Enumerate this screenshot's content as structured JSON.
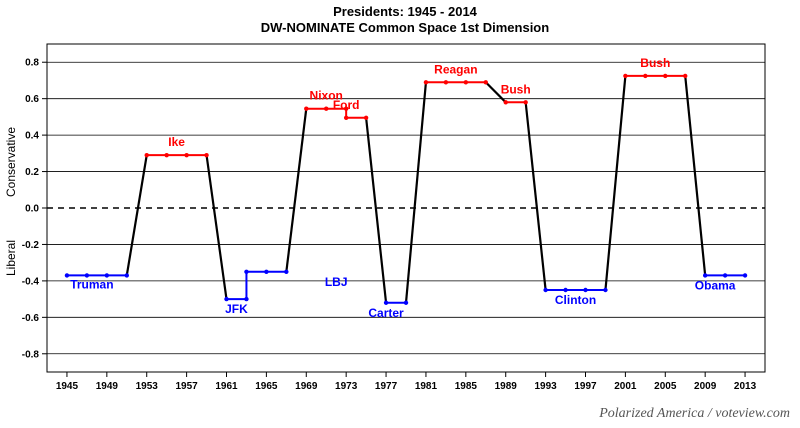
{
  "chart_data": {
    "type": "line",
    "title": "Presidents: 1945 - 2014",
    "subtitle": "DW-NOMINATE Common Space 1st Dimension",
    "xlabel": "",
    "ylabel_top": "Conservative",
    "ylabel_bottom": "Liberal",
    "xlim": [
      1943,
      2015
    ],
    "ylim": [
      -0.9,
      0.9
    ],
    "xticks": [
      1945,
      1949,
      1953,
      1957,
      1961,
      1965,
      1969,
      1973,
      1977,
      1981,
      1985,
      1989,
      1993,
      1997,
      2001,
      2005,
      2009,
      2013
    ],
    "yticks": [
      -0.8,
      -0.6,
      -0.4,
      -0.2,
      0.0,
      0.2,
      0.4,
      0.6,
      0.8
    ],
    "ytick_labels": [
      "-0.8",
      "-0.6",
      "-0.4",
      "-0.2",
      "0.0",
      "0.2",
      "0.4",
      "0.6",
      "0.8"
    ],
    "gridlines": true,
    "reference_line": 0.0,
    "colors": {
      "democrat": "#0000ff",
      "republican": "#ff0000",
      "transition": "#000000",
      "democrat_label": "#0000ff",
      "republican_label": "#ff0000"
    },
    "series": [
      {
        "name": "Truman",
        "party": "D",
        "x": [
          1945,
          1947,
          1949,
          1951
        ],
        "y": [
          -0.37,
          -0.37,
          -0.37,
          -0.37
        ]
      },
      {
        "name": "Ike",
        "party": "R",
        "x": [
          1953,
          1955,
          1957,
          1959
        ],
        "y": [
          0.29,
          0.29,
          0.29,
          0.29
        ]
      },
      {
        "name": "JFK",
        "party": "D",
        "x": [
          1961,
          1963
        ],
        "y": [
          -0.5,
          -0.5
        ]
      },
      {
        "name": "LBJ",
        "party": "D",
        "x": [
          1963,
          1965,
          1967
        ],
        "y": [
          -0.35,
          -0.35,
          -0.35
        ]
      },
      {
        "name": "Nixon",
        "party": "R",
        "x": [
          1969,
          1971,
          1973
        ],
        "y": [
          0.545,
          0.545,
          0.545
        ]
      },
      {
        "name": "Ford",
        "party": "R",
        "x": [
          1973,
          1975
        ],
        "y": [
          0.495,
          0.495
        ]
      },
      {
        "name": "Carter",
        "party": "D",
        "x": [
          1977,
          1979
        ],
        "y": [
          -0.52,
          -0.52
        ]
      },
      {
        "name": "Reagan",
        "party": "R",
        "x": [
          1981,
          1983,
          1985,
          1987
        ],
        "y": [
          0.69,
          0.69,
          0.69,
          0.69
        ]
      },
      {
        "name": "Bush",
        "party": "R",
        "x": [
          1989,
          1991
        ],
        "y": [
          0.58,
          0.58
        ]
      },
      {
        "name": "Clinton",
        "party": "D",
        "x": [
          1993,
          1995,
          1997,
          1999
        ],
        "y": [
          -0.45,
          -0.45,
          -0.45,
          -0.45
        ]
      },
      {
        "name": "Bush",
        "party": "R",
        "x": [
          2001,
          2003,
          2005,
          2007
        ],
        "y": [
          0.725,
          0.725,
          0.725,
          0.725
        ]
      },
      {
        "name": "Obama",
        "party": "D",
        "x": [
          2009,
          2011,
          2013
        ],
        "y": [
          -0.37,
          -0.37,
          -0.37
        ]
      }
    ],
    "transitions": [
      {
        "from": [
          1951,
          -0.37
        ],
        "to": [
          1953,
          0.29
        ]
      },
      {
        "from": [
          1959,
          0.29
        ],
        "to": [
          1961,
          -0.5
        ]
      },
      {
        "from": [
          1967,
          -0.35
        ],
        "to": [
          1969,
          0.545
        ]
      },
      {
        "from": [
          1975,
          0.495
        ],
        "to": [
          1977,
          -0.52
        ]
      },
      {
        "from": [
          1979,
          -0.52
        ],
        "to": [
          1981,
          0.69
        ]
      },
      {
        "from": [
          1987,
          0.69
        ],
        "to": [
          1989,
          0.58
        ]
      },
      {
        "from": [
          1991,
          0.58
        ],
        "to": [
          1993,
          -0.45
        ]
      },
      {
        "from": [
          1999,
          -0.45
        ],
        "to": [
          2001,
          0.725
        ]
      },
      {
        "from": [
          2007,
          0.725
        ],
        "to": [
          2009,
          -0.37
        ]
      }
    ]
  },
  "credit": "Polarized America / voteview.com"
}
